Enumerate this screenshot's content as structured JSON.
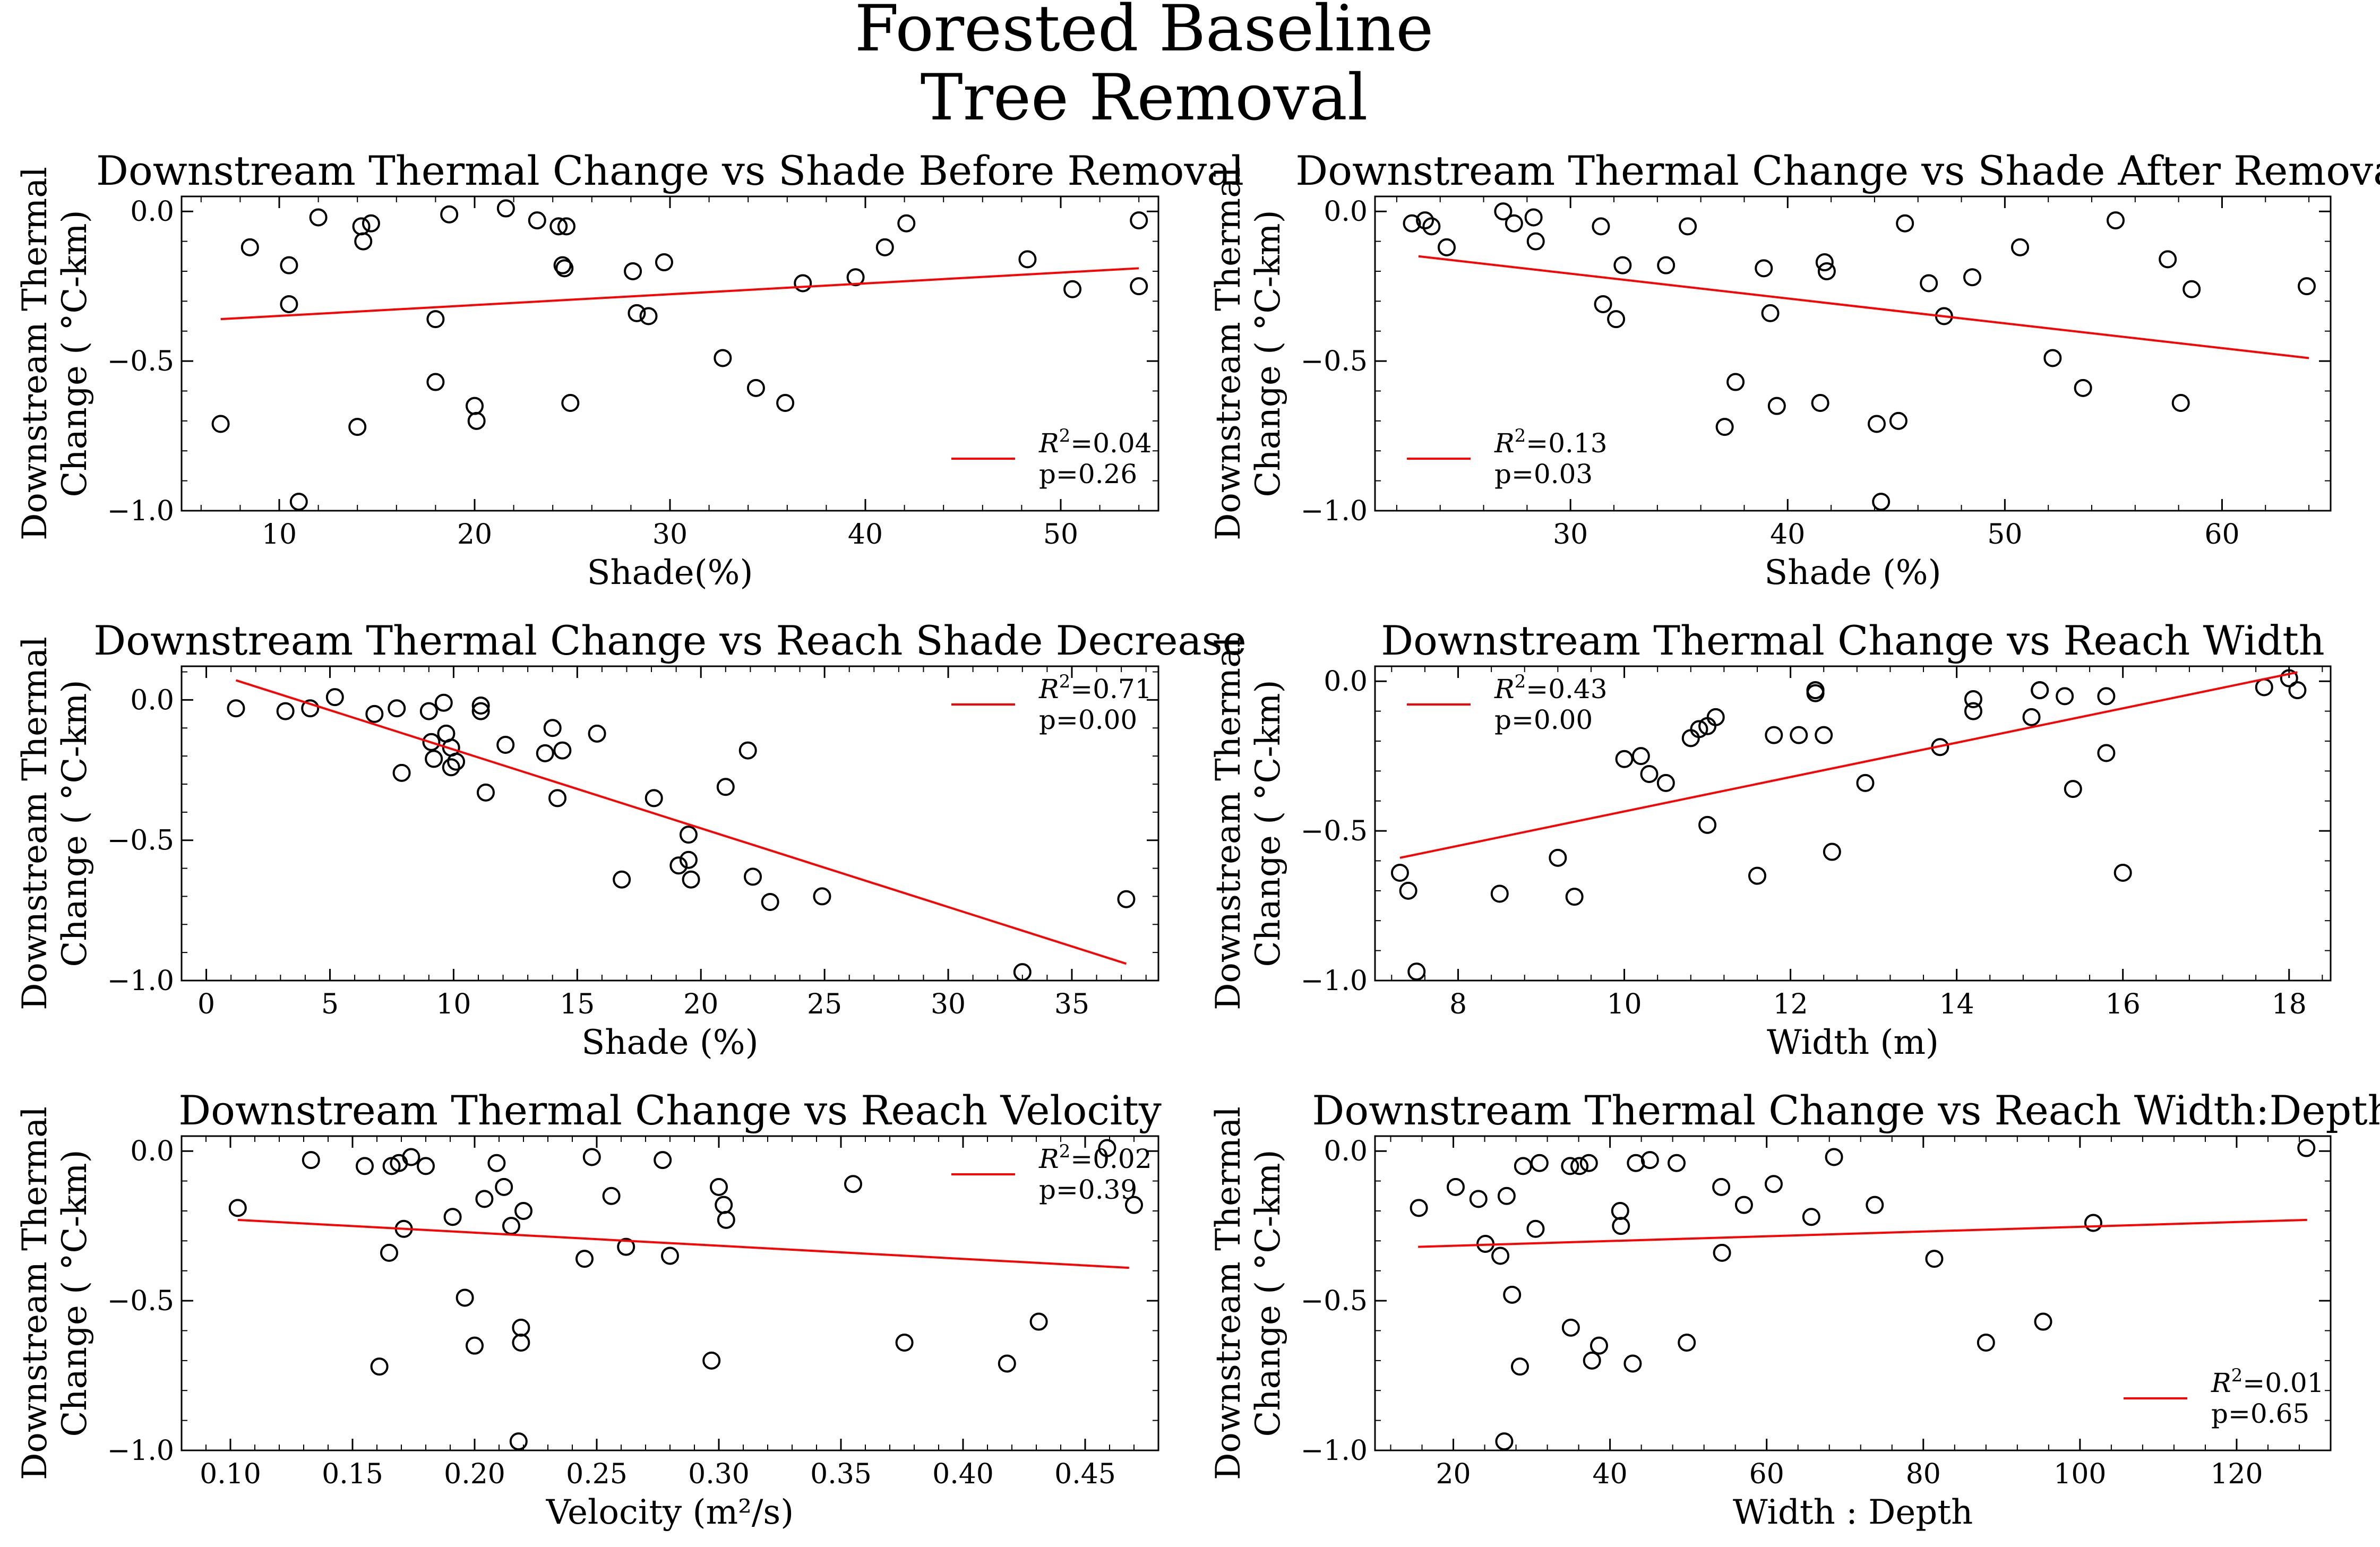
{
  "figure": {
    "title_line1": "Forested Baseline",
    "title_line2": "Tree Removal"
  },
  "style": {
    "marker_color": "#000000",
    "fit_line_color": "#ff0000",
    "marker": "open circle"
  },
  "chart_data": [
    {
      "type": "scatter",
      "title": "Downstream Thermal Change vs Shade Before Removal",
      "xlabel": "Shade(%)",
      "ylabel": "Downstream Thermal Change ( °C-km)",
      "xlim": [
        5,
        55
      ],
      "ylim": [
        -1.0,
        0.05
      ],
      "xticks": [
        10,
        20,
        30,
        40,
        50
      ],
      "yticks": [
        -1.0,
        -0.5,
        0.0
      ],
      "legend": {
        "position": "lower-right",
        "r2": "0.04",
        "p": "0.26"
      },
      "fit": {
        "x": [
          7,
          54
        ],
        "y": [
          -0.36,
          -0.19
        ]
      },
      "points": {
        "x": [
          7,
          8.5,
          10.5,
          10.5,
          11,
          12,
          14,
          14.2,
          14.3,
          14.7,
          18,
          18,
          18.7,
          20,
          20.1,
          21.6,
          23.2,
          24.3,
          24.5,
          24.6,
          24.7,
          24.9,
          28.1,
          28.3,
          28.9,
          29.7,
          32.7,
          34.4,
          35.9,
          36.8,
          39.5,
          41,
          42.1,
          48.3,
          50.6,
          54,
          54
        ],
        "y": [
          -0.71,
          -0.12,
          -0.18,
          -0.31,
          -0.97,
          -0.02,
          -0.72,
          -0.05,
          -0.1,
          -0.04,
          -0.36,
          -0.57,
          -0.01,
          -0.65,
          -0.7,
          0.01,
          -0.03,
          -0.05,
          -0.18,
          -0.19,
          -0.05,
          -0.64,
          -0.2,
          -0.34,
          -0.35,
          -0.17,
          -0.49,
          -0.59,
          -0.64,
          -0.24,
          -0.22,
          -0.12,
          -0.04,
          -0.16,
          -0.26,
          -0.03,
          -0.25
        ]
      }
    },
    {
      "type": "scatter",
      "title": "Downstream Thermal Change vs Shade After Removal",
      "xlabel": "Shade (%)",
      "ylabel": "Downstream Thermal Change ( °C-km)",
      "xlim": [
        21,
        65
      ],
      "ylim": [
        -1.0,
        0.05
      ],
      "xticks": [
        30,
        40,
        50,
        60
      ],
      "yticks": [
        -1.0,
        -0.5,
        0.0
      ],
      "legend": {
        "position": "lower-left",
        "r2": "0.13",
        "p": "0.03"
      },
      "fit": {
        "x": [
          23,
          64
        ],
        "y": [
          -0.15,
          -0.49
        ]
      },
      "points": {
        "x": [
          22.7,
          23.3,
          23.6,
          24.3,
          26.9,
          27.4,
          28.3,
          28.4,
          31.4,
          31.5,
          32.1,
          32.4,
          34.4,
          35.4,
          37.1,
          37.6,
          38.9,
          39.2,
          39.5,
          41.5,
          41.7,
          41.8,
          44.1,
          44.3,
          45.1,
          45.4,
          46.5,
          47.2,
          48.5,
          50.7,
          52.2,
          53.6,
          55.1,
          57.5,
          58.1,
          58.6,
          63.9
        ],
        "y": [
          -0.04,
          -0.03,
          -0.05,
          -0.12,
          0.0,
          -0.04,
          -0.02,
          -0.1,
          -0.05,
          -0.31,
          -0.36,
          -0.18,
          -0.18,
          -0.05,
          -0.72,
          -0.57,
          -0.19,
          -0.34,
          -0.65,
          -0.64,
          -0.17,
          -0.2,
          -0.71,
          -0.97,
          -0.7,
          -0.04,
          -0.24,
          -0.35,
          -0.22,
          -0.12,
          -0.49,
          -0.59,
          -0.03,
          -0.16,
          -0.64,
          -0.26,
          -0.25
        ]
      }
    },
    {
      "type": "scatter",
      "title": "Downstream Thermal Change vs Reach Shade Decrease",
      "xlabel": "Shade (%)",
      "ylabel": "Downstream Thermal Change ( °C-km)",
      "xlim": [
        -1,
        38.5
      ],
      "ylim": [
        -1.0,
        0.12
      ],
      "xticks": [
        0,
        5,
        10,
        15,
        20,
        25,
        30,
        35
      ],
      "yticks": [
        -1.0,
        -0.5,
        0.0
      ],
      "legend": {
        "position": "upper-right",
        "r2": "0.71",
        "p": "0.00"
      },
      "fit": {
        "x": [
          1.2,
          37.2
        ],
        "y": [
          0.07,
          -0.94
        ]
      },
      "points": {
        "x": [
          1.2,
          3.2,
          4.2,
          5.2,
          6.8,
          7.7,
          7.9,
          9.0,
          9.1,
          9.2,
          9.6,
          9.7,
          9.9,
          9.9,
          10.1,
          11.1,
          11.1,
          11.3,
          12.1,
          13.7,
          14.0,
          14.2,
          14.4,
          15.8,
          18.1,
          19.1,
          19.5,
          19.5,
          19.6,
          21.0,
          21.9,
          22.1,
          22.8,
          24.9,
          33.0,
          37.2,
          16.8
        ],
        "y": [
          -0.03,
          -0.04,
          -0.03,
          0.01,
          -0.05,
          -0.03,
          -0.26,
          -0.04,
          -0.15,
          -0.21,
          -0.01,
          -0.12,
          -0.17,
          -0.24,
          -0.22,
          -0.02,
          -0.04,
          -0.33,
          -0.16,
          -0.19,
          -0.1,
          -0.35,
          -0.18,
          -0.12,
          -0.35,
          -0.59,
          -0.48,
          -0.57,
          -0.64,
          -0.31,
          -0.18,
          -0.63,
          -0.72,
          -0.7,
          -0.97,
          -0.71,
          -0.64
        ]
      }
    },
    {
      "type": "scatter",
      "title": "Downstream Thermal Change vs Reach Width",
      "xlabel": "Width (m)",
      "ylabel": "Downstream Thermal Change ( °C-km)",
      "xlim": [
        7,
        18.5
      ],
      "ylim": [
        -1.0,
        0.05
      ],
      "xticks": [
        8,
        10,
        12,
        14,
        16,
        18
      ],
      "yticks": [
        -1.0,
        -0.5,
        0.0
      ],
      "legend": {
        "position": "upper-left",
        "r2": "0.43",
        "p": "0.00"
      },
      "fit": {
        "x": [
          7.3,
          18.1
        ],
        "y": [
          -0.59,
          0.03
        ]
      },
      "points": {
        "x": [
          7.3,
          7.4,
          7.5,
          8.5,
          9.2,
          9.4,
          10,
          10.2,
          10.3,
          10.5,
          10.8,
          10.9,
          11.0,
          11.0,
          11.1,
          11.6,
          11.8,
          12.1,
          12.3,
          12.3,
          12.3,
          12.4,
          12.5,
          12.9,
          13.8,
          14.2,
          14.2,
          14.9,
          15.0,
          15.0,
          15.3,
          15.4,
          15.8,
          15.8,
          16.0,
          17.7,
          18.0,
          18.1
        ],
        "y": [
          -0.64,
          -0.7,
          -0.97,
          -0.71,
          -0.59,
          -0.72,
          -0.26,
          -0.25,
          -0.31,
          -0.34,
          -0.19,
          -0.16,
          -0.48,
          -0.15,
          -0.12,
          -0.65,
          -0.18,
          -0.18,
          -0.04,
          -0.03,
          -0.03,
          -0.18,
          -0.57,
          -0.34,
          -0.22,
          -0.06,
          -0.1,
          -0.12,
          -0.03,
          -0.03,
          -0.05,
          -0.36,
          -0.05,
          -0.24,
          -0.64,
          -0.02,
          0.01,
          -0.03
        ]
      }
    },
    {
      "type": "scatter",
      "title": "Downstream Thermal Change vs Reach Velocity",
      "xlabel": "Velocity (m²/s)",
      "ylabel": "Downstream Thermal Change ( °C-km)",
      "xlim": [
        0.08,
        0.48
      ],
      "ylim": [
        -1.0,
        0.05
      ],
      "xticks": [
        0.1,
        0.15,
        0.2,
        0.25,
        0.3,
        0.35,
        0.4,
        0.45
      ],
      "yticks": [
        -1.0,
        -0.5,
        0.0
      ],
      "legend": {
        "position": "upper-right",
        "r2": "0.02",
        "p": "0.39"
      },
      "fit": {
        "x": [
          0.103,
          0.468
        ],
        "y": [
          -0.23,
          -0.39
        ]
      },
      "points": {
        "x": [
          0.103,
          0.133,
          0.155,
          0.161,
          0.165,
          0.166,
          0.169,
          0.171,
          0.174,
          0.18,
          0.191,
          0.196,
          0.2,
          0.204,
          0.209,
          0.212,
          0.215,
          0.218,
          0.219,
          0.219,
          0.22,
          0.245,
          0.248,
          0.256,
          0.262,
          0.277,
          0.28,
          0.297,
          0.3,
          0.302,
          0.303,
          0.355,
          0.376,
          0.418,
          0.431,
          0.459,
          0.47
        ],
        "y": [
          -0.19,
          -0.03,
          -0.05,
          -0.72,
          -0.34,
          -0.05,
          -0.04,
          -0.26,
          -0.02,
          -0.05,
          -0.22,
          -0.49,
          -0.65,
          -0.16,
          -0.04,
          -0.12,
          -0.25,
          -0.97,
          -0.59,
          -0.64,
          -0.2,
          -0.36,
          -0.02,
          -0.15,
          -0.32,
          -0.03,
          -0.35,
          -0.7,
          -0.12,
          -0.18,
          -0.23,
          -0.11,
          -0.64,
          -0.71,
          -0.57,
          0.01,
          -0.18
        ]
      }
    },
    {
      "type": "scatter",
      "title": "Downstream Thermal Change vs Reach Width:Depth",
      "xlabel": "Width : Depth",
      "ylabel": "Downstream Thermal Change ( °C-km)",
      "xlim": [
        10,
        132
      ],
      "ylim": [
        -1.0,
        0.05
      ],
      "xticks": [
        20,
        40,
        60,
        80,
        100,
        120
      ],
      "yticks": [
        -1.0,
        -0.5,
        0.0
      ],
      "legend": {
        "position": "lower-right",
        "r2": "0.01",
        "p": "0.65"
      },
      "fit": {
        "x": [
          15.5,
          129
        ],
        "y": [
          -0.32,
          -0.23
        ]
      },
      "points": {
        "x": [
          15.6,
          20.3,
          23.2,
          24.1,
          26.0,
          26.5,
          26.8,
          27.5,
          28.5,
          28.9,
          30.5,
          31.0,
          34.9,
          35.0,
          36.1,
          37.3,
          37.7,
          38.6,
          41.3,
          41.4,
          42.9,
          43.3,
          45.1,
          48.5,
          49.8,
          54.2,
          54.3,
          57.1,
          60.9,
          65.7,
          68.6,
          73.8,
          81.4,
          88.0,
          95.3,
          101.7,
          128.9
        ],
        "y": [
          -0.19,
          -0.12,
          -0.16,
          -0.31,
          -0.35,
          -0.97,
          -0.15,
          -0.48,
          -0.72,
          -0.05,
          -0.26,
          -0.04,
          -0.05,
          -0.59,
          -0.05,
          -0.04,
          -0.7,
          -0.65,
          -0.2,
          -0.25,
          -0.71,
          -0.04,
          -0.03,
          -0.04,
          -0.64,
          -0.12,
          -0.34,
          -0.18,
          -0.11,
          -0.22,
          -0.02,
          -0.18,
          -0.36,
          -0.64,
          -0.57,
          -0.24,
          0.01
        ]
      }
    }
  ]
}
